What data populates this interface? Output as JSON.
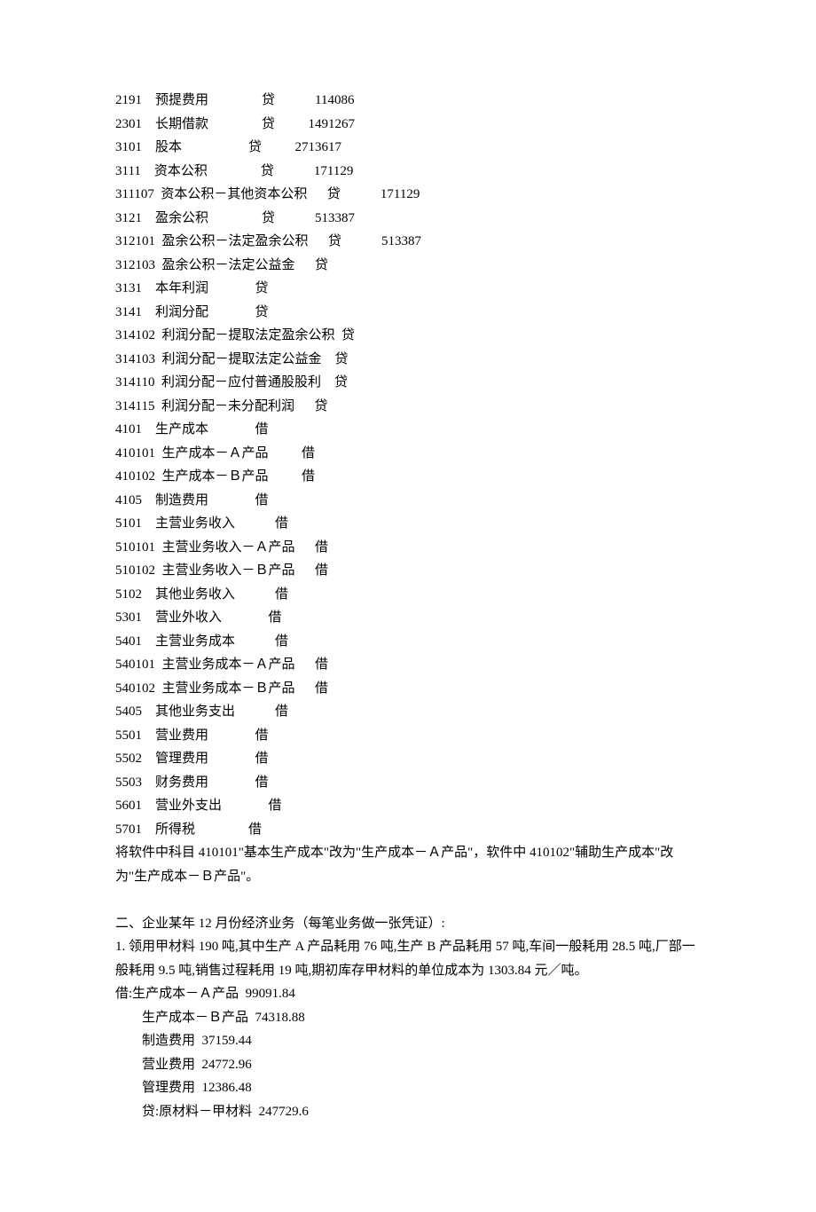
{
  "accounts": [
    {
      "code": "2191",
      "name": "预提费用",
      "dc": "贷",
      "amount": "114086",
      "sp1": 4,
      "sp2": 16,
      "sp3": 12
    },
    {
      "code": "2301",
      "name": "长期借款",
      "dc": "贷",
      "amount": "1491267",
      "sp1": 4,
      "sp2": 16,
      "sp3": 10
    },
    {
      "code": "3101",
      "name": "股本",
      "dc": "贷",
      "amount": "2713617",
      "sp1": 4,
      "sp2": 20,
      "sp3": 10
    },
    {
      "code": "3111",
      "name": "资本公积",
      "dc": "贷",
      "amount": "171129",
      "sp1": 4,
      "sp2": 16,
      "sp3": 12
    },
    {
      "code": "311107",
      "name": "资本公积－其他资本公积",
      "dc": "贷",
      "amount": "171129",
      "sp1": 2,
      "sp2": 6,
      "sp3": 12
    },
    {
      "code": "3121",
      "name": "盈余公积",
      "dc": "贷",
      "amount": "513387",
      "sp1": 4,
      "sp2": 16,
      "sp3": 12
    },
    {
      "code": "312101",
      "name": "盈余公积－法定盈余公积",
      "dc": "贷",
      "amount": "513387",
      "sp1": 2,
      "sp2": 6,
      "sp3": 12
    },
    {
      "code": "312103",
      "name": "盈余公积－法定公益金",
      "dc": "贷",
      "amount": "",
      "sp1": 2,
      "sp2": 6,
      "sp3": 0
    },
    {
      "code": "3131",
      "name": "本年利润",
      "dc": "贷",
      "amount": "",
      "sp1": 4,
      "sp2": 14,
      "sp3": 0
    },
    {
      "code": "3141",
      "name": "利润分配",
      "dc": "贷",
      "amount": "",
      "sp1": 4,
      "sp2": 14,
      "sp3": 0
    },
    {
      "code": "314102",
      "name": "利润分配－提取法定盈余公积",
      "dc": "贷",
      "amount": "",
      "sp1": 2,
      "sp2": 2,
      "sp3": 0
    },
    {
      "code": "314103",
      "name": "利润分配－提取法定公益金",
      "dc": "贷",
      "amount": "",
      "sp1": 2,
      "sp2": 4,
      "sp3": 0
    },
    {
      "code": "314110",
      "name": "利润分配－应付普通股股利",
      "dc": "贷",
      "amount": "",
      "sp1": 2,
      "sp2": 4,
      "sp3": 0
    },
    {
      "code": "314115",
      "name": "利润分配－未分配利润",
      "dc": "贷",
      "amount": "",
      "sp1": 2,
      "sp2": 6,
      "sp3": 0
    },
    {
      "code": "4101",
      "name": "生产成本",
      "dc": "借",
      "amount": "",
      "sp1": 4,
      "sp2": 14,
      "sp3": 0
    },
    {
      "code": "410101",
      "name": "生产成本－Ａ产品",
      "dc": "借",
      "amount": "",
      "sp1": 2,
      "sp2": 10,
      "sp3": 0
    },
    {
      "code": "410102",
      "name": "生产成本－Ｂ产品",
      "dc": "借",
      "amount": "",
      "sp1": 2,
      "sp2": 10,
      "sp3": 0
    },
    {
      "code": "4105",
      "name": "制造费用",
      "dc": "借",
      "amount": "",
      "sp1": 4,
      "sp2": 14,
      "sp3": 0
    },
    {
      "code": "5101",
      "name": "主营业务收入",
      "dc": "借",
      "amount": "",
      "sp1": 4,
      "sp2": 12,
      "sp3": 0
    },
    {
      "code": "510101",
      "name": "主营业务收入－Ａ产品",
      "dc": "借",
      "amount": "",
      "sp1": 2,
      "sp2": 6,
      "sp3": 0
    },
    {
      "code": "510102",
      "name": "主营业务收入－Ｂ产品",
      "dc": "借",
      "amount": "",
      "sp1": 2,
      "sp2": 6,
      "sp3": 0
    },
    {
      "code": "5102",
      "name": "其他业务收入",
      "dc": "借",
      "amount": "",
      "sp1": 4,
      "sp2": 12,
      "sp3": 0
    },
    {
      "code": "5301",
      "name": "营业外收入",
      "dc": "借",
      "amount": "",
      "sp1": 4,
      "sp2": 14,
      "sp3": 0
    },
    {
      "code": "5401",
      "name": "主营业务成本",
      "dc": "借",
      "amount": "",
      "sp1": 4,
      "sp2": 12,
      "sp3": 0
    },
    {
      "code": "540101",
      "name": "主营业务成本－Ａ产品",
      "dc": "借",
      "amount": "",
      "sp1": 2,
      "sp2": 6,
      "sp3": 0
    },
    {
      "code": "540102",
      "name": "主营业务成本－Ｂ产品",
      "dc": "借",
      "amount": "",
      "sp1": 2,
      "sp2": 6,
      "sp3": 0
    },
    {
      "code": "5405",
      "name": "其他业务支出",
      "dc": "借",
      "amount": "",
      "sp1": 4,
      "sp2": 12,
      "sp3": 0
    },
    {
      "code": "5501",
      "name": "营业费用",
      "dc": "借",
      "amount": "",
      "sp1": 4,
      "sp2": 14,
      "sp3": 0
    },
    {
      "code": "5502",
      "name": "管理费用",
      "dc": "借",
      "amount": "",
      "sp1": 4,
      "sp2": 14,
      "sp3": 0
    },
    {
      "code": "5503",
      "name": "财务费用",
      "dc": "借",
      "amount": "",
      "sp1": 4,
      "sp2": 14,
      "sp3": 0
    },
    {
      "code": "5601",
      "name": "营业外支出",
      "dc": "借",
      "amount": "",
      "sp1": 4,
      "sp2": 14,
      "sp3": 0
    },
    {
      "code": "5701",
      "name": "所得税",
      "dc": "借",
      "amount": "",
      "sp1": 4,
      "sp2": 16,
      "sp3": 0
    }
  ],
  "note1": "将软件中科目 410101\"基本生产成本\"改为\"生产成本－Ａ产品\"，软件中 410102\"辅助生产成本\"改为\"生产成本－Ｂ产品\"。",
  "section2_title": "二、企业某年 12 月份经济业务（每笔业务做一张凭证）:",
  "item1_text": "1.  领用甲材料 190 吨,其中生产 A 产品耗用 76 吨,生产 B 产品耗用 57 吨,车间一般耗用 28.5 吨,厂部一般耗用 9.5 吨,销售过程耗用 19 吨,期初库存甲材料的单位成本为 1303.84 元／吨。",
  "entries": [
    "借:生产成本－Ａ产品  99091.84",
    "生产成本－Ｂ产品  74318.88",
    "制造费用  37159.44",
    "营业费用  24772.96",
    "管理费用  12386.48",
    "贷:原材料－甲材料  247729.6"
  ]
}
